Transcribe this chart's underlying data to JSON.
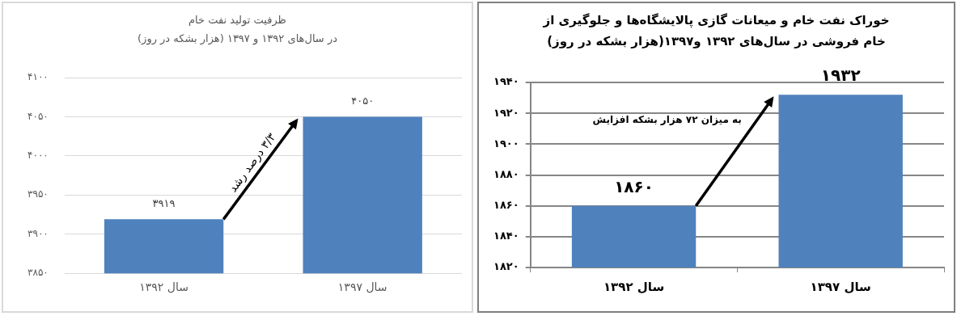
{
  "chart_data": [
    {
      "type": "bar",
      "title": "ظرفیت تولید نفت خام",
      "subtitle": "در سال‌های ۱۳۹۲ و ۱۳۹۷ (هزار بشکه در روز)",
      "categories": [
        "سال ۱۳۹۲",
        "سال ۱۳۹۷"
      ],
      "values": [
        3919,
        4050
      ],
      "value_labels": [
        "۳۹۱۹",
        "۴۰۵۰"
      ],
      "color": "#4f81bd",
      "ylim": [
        3850,
        4100
      ],
      "yticks": [
        {
          "value": 3850,
          "label": "۳۸۵۰"
        },
        {
          "value": 3900,
          "label": "۳۹۰۰"
        },
        {
          "value": 3950,
          "label": "۳۹۵۰"
        },
        {
          "value": 4000,
          "label": "۴۰۰۰"
        },
        {
          "value": 4050,
          "label": "۴۰۵۰"
        },
        {
          "value": 4100,
          "label": "۴۱۰۰"
        }
      ],
      "grid": "y",
      "legend": false,
      "annotations": [
        "۳/۳ درصد رشد"
      ]
    },
    {
      "type": "bar",
      "title": "خوراک نفت خام و میعانات گازی پالایشگاه‌ها و جلوگیری از خام فروشی در سال‌های ۱۳۹۲ و۱۳۹۷(هزار بشکه در روز)",
      "categories": [
        "سال ۱۳۹۲",
        "سال ۱۳۹۷"
      ],
      "values": [
        1860,
        1932
      ],
      "value_labels": [
        "۱۸۶۰",
        "۱۹۳۲"
      ],
      "color": "#4f81bd",
      "ylim": [
        1820,
        1940
      ],
      "yticks": [
        {
          "value": 1820,
          "label": "۱۸۲۰"
        },
        {
          "value": 1840,
          "label": "۱۸۴۰"
        },
        {
          "value": 1860,
          "label": "۱۸۶۰"
        },
        {
          "value": 1880,
          "label": "۱۸۸۰"
        },
        {
          "value": 1900,
          "label": "۱۹۰۰"
        },
        {
          "value": 1920,
          "label": "۱۹۲۰"
        },
        {
          "value": 1940,
          "label": "۱۹۴۰"
        }
      ],
      "grid": "y",
      "legend": false,
      "annotations": [
        "به میزان ۷۲ هزار بشکه افزایش"
      ]
    }
  ]
}
